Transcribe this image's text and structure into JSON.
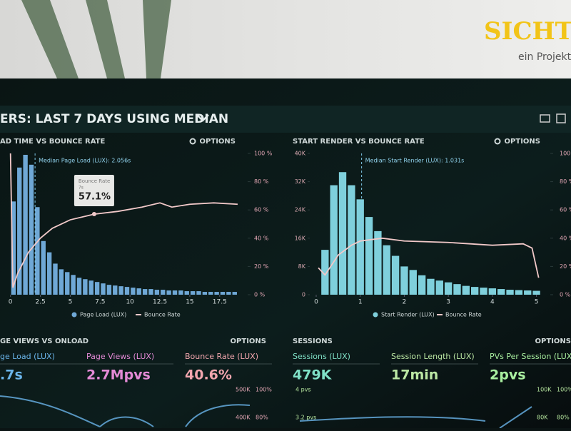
{
  "brand": {
    "logo": "SICHTW",
    "tagline": "ein Projekt"
  },
  "header": {
    "title": "ERS: LAST 7 DAYS USING MEDIAN"
  },
  "chart_data": [
    {
      "type": "histogram",
      "title": "AD TIME VS BOUNCE RATE",
      "options": "OPTIONS",
      "bins": [
        0,
        0.5,
        1,
        1.5,
        2,
        2.5,
        3,
        3.5,
        4,
        4.5,
        5,
        5.5,
        6,
        6.5,
        7,
        7.5,
        8,
        8.5,
        9,
        9.5,
        10,
        10.5,
        11,
        11.5,
        12,
        12.5,
        13,
        13.5,
        14,
        14.5,
        15,
        15.5,
        16,
        16.5,
        17,
        17.5,
        18,
        18.5,
        19
      ],
      "series": [
        {
          "name": "Page Load (LUX)",
          "color": "#6fa8d6",
          "values": [
            66,
            90,
            99,
            92,
            62,
            38,
            30,
            22,
            18,
            16,
            14,
            12,
            11,
            10,
            9,
            8,
            7,
            6.5,
            6,
            5.5,
            5,
            4.5,
            4,
            4,
            3.5,
            3.5,
            3,
            3,
            3,
            2.5,
            2.5,
            2.5,
            2,
            2,
            2,
            2,
            2,
            2
          ]
        },
        {
          "name": "Bounce Rate",
          "color": "#f2c9c9",
          "axis": "y2",
          "x": [
            0,
            0.2,
            0.6,
            1.5,
            2.5,
            3.5,
            5,
            7,
            9,
            11,
            12.5,
            13.5,
            15,
            17,
            19
          ],
          "values": [
            100,
            5,
            15,
            30,
            40,
            47,
            53,
            57,
            59,
            62,
            65,
            62,
            64,
            65,
            64
          ]
        }
      ],
      "xlim": [
        -0.1,
        19.6
      ],
      "xticks": [
        0,
        2.5,
        5,
        7.5,
        10,
        12.5,
        15,
        17.5
      ],
      "ylim": [
        0,
        100
      ],
      "y2lim": [
        0,
        100
      ],
      "y2ticks": [
        {
          "value": 0,
          "label": "0 %"
        },
        {
          "value": 20,
          "label": "20 %"
        },
        {
          "value": 40,
          "label": "40 %"
        },
        {
          "value": 60,
          "label": "60 %"
        },
        {
          "value": 80,
          "label": "80 %"
        },
        {
          "value": 100,
          "label": "100 %"
        }
      ],
      "median": {
        "value": 2.056,
        "label": "Median Page Load (LUX): 2.056s"
      },
      "tooltip": {
        "name": "Bounce Rate",
        "x": {
          "value": 7,
          "label": "7s"
        },
        "value": 57.1,
        "label": "57.1%"
      }
    },
    {
      "type": "histogram",
      "title": "START RENDER VS BOUNCE RATE",
      "options": "OPTIONS",
      "bins": [
        0.1,
        0.3,
        0.5,
        0.7,
        0.9,
        1.1,
        1.3,
        1.5,
        1.7,
        1.9,
        2.1,
        2.3,
        2.5,
        2.7,
        2.9,
        3.1,
        3.3,
        3.5,
        3.7,
        3.9,
        4.1,
        4.3,
        4.5,
        4.7,
        4.9,
        5.1
      ],
      "series": [
        {
          "name": "Start Render (LUX)",
          "color": "#7fd0dc",
          "values": [
            12700,
            31000,
            34700,
            31000,
            27000,
            22000,
            18000,
            14000,
            11000,
            8000,
            7000,
            5500,
            4500,
            4000,
            3500,
            3000,
            2500,
            2200,
            2000,
            1800,
            1600,
            1400,
            1300,
            1200,
            1100
          ]
        },
        {
          "name": "Bounce Rate",
          "color": "#f2c9c9",
          "axis": "y2",
          "x": [
            0.05,
            0.2,
            0.5,
            0.8,
            1,
            1.5,
            2,
            3,
            4,
            4.7,
            4.9,
            5.05
          ],
          "values": [
            19,
            14,
            28,
            35,
            38,
            40,
            38,
            37,
            35,
            36,
            33,
            12
          ]
        }
      ],
      "xlim": [
        0,
        5.25
      ],
      "xticks": [
        0,
        1,
        2,
        3,
        4,
        5
      ],
      "ylim": [
        0,
        40000
      ],
      "yticks": [
        0,
        {
          "value": 8000,
          "label": "8K"
        },
        {
          "value": 16000,
          "label": "16K"
        },
        {
          "value": 24000,
          "label": "24K"
        },
        {
          "value": 32000,
          "label": "32K"
        },
        {
          "value": 40000,
          "label": "40K"
        }
      ],
      "y2lim": [
        0,
        100
      ],
      "y2ticks": [
        {
          "value": 0,
          "label": "0 %"
        },
        {
          "value": 20,
          "label": "20 %"
        },
        {
          "value": 40,
          "label": "40 %"
        },
        {
          "value": 60,
          "label": "60 %"
        },
        {
          "value": 80,
          "label": "80 %"
        },
        {
          "value": 100,
          "label": "100 %"
        }
      ],
      "median": {
        "value": 1.031,
        "label": "Median Start Render (LUX): 1.031s"
      }
    }
  ],
  "panels": [
    {
      "title": "GE VIEWS VS ONLOAD",
      "options": "OPTIONS",
      "kpis": [
        {
          "label": "ge Load (LUX)",
          "value": ".7s",
          "color": "#6ab4ea"
        },
        {
          "label": "Page Views (LUX)",
          "value": "2.7Mpvs",
          "color": "#e48ad6"
        },
        {
          "label": "Bounce Rate (LUX)",
          "value": "40.6%",
          "color": "#f2a6ae"
        }
      ],
      "axis_labels": [
        "500K",
        "100%",
        "400K",
        "80%"
      ]
    },
    {
      "title": "SESSIONS",
      "options": "OPTIONS",
      "kpis": [
        {
          "label": "Sessions (LUX)",
          "value": "479K",
          "color": "#7fe0c6"
        },
        {
          "label": "Session Length (LUX)",
          "value": "17min",
          "color": "#bce8a4"
        },
        {
          "label": "PVs Per Session (LUX)",
          "value": "2pvs",
          "color": "#a9f0a0"
        }
      ],
      "axis_labels": [
        "4 pvs",
        "3.2 pvs",
        "100K",
        "80K",
        "100%",
        "80%"
      ]
    }
  ]
}
